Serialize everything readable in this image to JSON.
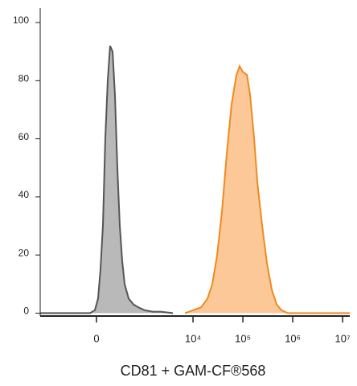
{
  "chart_data": {
    "type": "area",
    "xlabel": "CD81 + GAM-CF®568",
    "xscale": "biexponential",
    "xlim": [
      -1550,
      13900000
    ],
    "xticks": [
      0,
      {
        "value": 10000,
        "label": "10⁴"
      },
      {
        "value": 100000,
        "label": "10⁵"
      },
      {
        "value": 1000000,
        "label": "10⁶"
      },
      {
        "value": 10000000,
        "label": "10⁷"
      }
    ],
    "ylim": [
      -1,
      105
    ],
    "yticks": [
      0,
      20,
      40,
      60,
      80,
      100
    ],
    "series": [
      {
        "color": "#555555",
        "fill": "#b9b9b9",
        "x": [
          -1550,
          -70,
          -17,
          17,
          43,
          70,
          97,
          126,
          156,
          189,
          223,
          260,
          301,
          345,
          394,
          486,
          620,
          784,
          1065,
          1552,
          2257,
          3944
        ],
        "values": [
          0,
          0,
          1,
          5,
          15,
          30,
          60,
          80,
          92,
          90,
          75,
          50,
          30,
          18,
          10,
          5,
          3,
          2,
          1,
          0.5,
          0.5,
          0
        ]
      },
      {
        "color": "#ef8a1f",
        "fill": "#fdc897",
        "x": [
          6900,
          10000,
          14490,
          19510,
          24380,
          30480,
          38100,
          47580,
          59460,
          74300,
          86100,
          100000,
          120500,
          139600,
          168300,
          195000,
          243800,
          304800,
          381000,
          475000,
          594000,
          800000,
          13900000
        ],
        "values": [
          0,
          1,
          2,
          5,
          10,
          20,
          35,
          55,
          72,
          82,
          85,
          83,
          82,
          75,
          60,
          45,
          30,
          17,
          8,
          3,
          1,
          0,
          0
        ]
      }
    ]
  }
}
